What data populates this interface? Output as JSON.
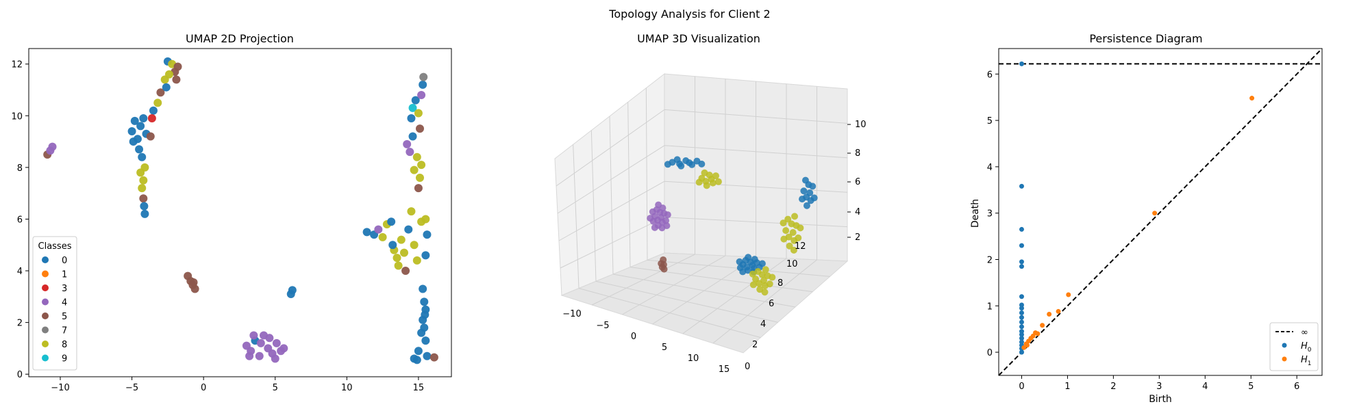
{
  "suptitle": "Topology Analysis for Client 2",
  "chart_data": [
    {
      "type": "scatter",
      "title": "UMAP 2D Projection",
      "xlim": [
        -12.2,
        17.3
      ],
      "ylim": [
        -0.1,
        12.6
      ],
      "xticks": [
        -10,
        -5,
        0,
        5,
        10,
        15
      ],
      "yticks": [
        0,
        2,
        4,
        6,
        8,
        10,
        12
      ],
      "grid": false,
      "legend": {
        "title": "Classes",
        "placement": "lower-left",
        "entries": [
          {
            "label": "0",
            "color": "#1f77b4"
          },
          {
            "label": "1",
            "color": "#ff7f0e"
          },
          {
            "label": "3",
            "color": "#d62728"
          },
          {
            "label": "4",
            "color": "#9467bd"
          },
          {
            "label": "5",
            "color": "#8c564b"
          },
          {
            "label": "7",
            "color": "#7f7f7f"
          },
          {
            "label": "8",
            "color": "#bcbd22"
          },
          {
            "label": "9",
            "color": "#17becf"
          }
        ]
      },
      "points": [
        {
          "x": -10.9,
          "y": 8.5,
          "c": "5"
        },
        {
          "x": -10.7,
          "y": 8.65,
          "c": "4"
        },
        {
          "x": -10.55,
          "y": 8.8,
          "c": "4"
        },
        {
          "x": -5.0,
          "y": 9.4,
          "c": "0"
        },
        {
          "x": -4.8,
          "y": 9.8,
          "c": "0"
        },
        {
          "x": -4.6,
          "y": 9.1,
          "c": "0"
        },
        {
          "x": -4.4,
          "y": 9.6,
          "c": "0"
        },
        {
          "x": -4.2,
          "y": 9.9,
          "c": "0"
        },
        {
          "x": -4.9,
          "y": 9.0,
          "c": "0"
        },
        {
          "x": -4.5,
          "y": 8.7,
          "c": "0"
        },
        {
          "x": -4.3,
          "y": 8.4,
          "c": "0"
        },
        {
          "x": -4.0,
          "y": 9.3,
          "c": "0"
        },
        {
          "x": -3.7,
          "y": 9.2,
          "c": "5"
        },
        {
          "x": -4.1,
          "y": 8.0,
          "c": "8"
        },
        {
          "x": -4.2,
          "y": 7.5,
          "c": "8"
        },
        {
          "x": -4.3,
          "y": 7.2,
          "c": "8"
        },
        {
          "x": -4.2,
          "y": 6.8,
          "c": "5"
        },
        {
          "x": -4.15,
          "y": 6.5,
          "c": "0"
        },
        {
          "x": -4.1,
          "y": 6.2,
          "c": "0"
        },
        {
          "x": -4.4,
          "y": 7.8,
          "c": "8"
        },
        {
          "x": -3.5,
          "y": 10.2,
          "c": "0"
        },
        {
          "x": -3.2,
          "y": 10.5,
          "c": "8"
        },
        {
          "x": -3.6,
          "y": 9.9,
          "c": "3"
        },
        {
          "x": -3.0,
          "y": 10.9,
          "c": "5"
        },
        {
          "x": -2.7,
          "y": 11.4,
          "c": "8"
        },
        {
          "x": -2.5,
          "y": 12.1,
          "c": "0"
        },
        {
          "x": -2.2,
          "y": 12.0,
          "c": "8"
        },
        {
          "x": -2.0,
          "y": 11.7,
          "c": "5"
        },
        {
          "x": -1.8,
          "y": 11.9,
          "c": "5"
        },
        {
          "x": -1.9,
          "y": 11.4,
          "c": "5"
        },
        {
          "x": -2.4,
          "y": 11.6,
          "c": "8"
        },
        {
          "x": -2.6,
          "y": 11.1,
          "c": "0"
        },
        {
          "x": -1.1,
          "y": 3.8,
          "c": "5"
        },
        {
          "x": -0.9,
          "y": 3.6,
          "c": "5"
        },
        {
          "x": -0.75,
          "y": 3.45,
          "c": "5"
        },
        {
          "x": -0.6,
          "y": 3.3,
          "c": "5"
        },
        {
          "x": -0.7,
          "y": 3.55,
          "c": "5"
        },
        {
          "x": 6.1,
          "y": 3.1,
          "c": "0"
        },
        {
          "x": 6.2,
          "y": 3.25,
          "c": "0"
        },
        {
          "x": 3.0,
          "y": 1.1,
          "c": "4"
        },
        {
          "x": 3.3,
          "y": 0.9,
          "c": "4"
        },
        {
          "x": 3.6,
          "y": 1.3,
          "c": "0"
        },
        {
          "x": 3.9,
          "y": 0.7,
          "c": "4"
        },
        {
          "x": 4.2,
          "y": 1.5,
          "c": "4"
        },
        {
          "x": 4.5,
          "y": 1.0,
          "c": "4"
        },
        {
          "x": 4.8,
          "y": 0.8,
          "c": "4"
        },
        {
          "x": 5.1,
          "y": 1.2,
          "c": "4"
        },
        {
          "x": 5.4,
          "y": 0.9,
          "c": "4"
        },
        {
          "x": 3.5,
          "y": 1.5,
          "c": "4"
        },
        {
          "x": 4.0,
          "y": 1.2,
          "c": "4"
        },
        {
          "x": 4.6,
          "y": 1.4,
          "c": "4"
        },
        {
          "x": 5.0,
          "y": 0.6,
          "c": "4"
        },
        {
          "x": 3.2,
          "y": 0.7,
          "c": "4"
        },
        {
          "x": 5.6,
          "y": 1.0,
          "c": "4"
        },
        {
          "x": 11.4,
          "y": 5.5,
          "c": "0"
        },
        {
          "x": 11.9,
          "y": 5.4,
          "c": "0"
        },
        {
          "x": 12.2,
          "y": 5.6,
          "c": "4"
        },
        {
          "x": 12.5,
          "y": 5.3,
          "c": "8"
        },
        {
          "x": 12.8,
          "y": 5.8,
          "c": "8"
        },
        {
          "x": 13.1,
          "y": 5.9,
          "c": "0"
        },
        {
          "x": 13.3,
          "y": 4.8,
          "c": "8"
        },
        {
          "x": 13.5,
          "y": 4.5,
          "c": "8"
        },
        {
          "x": 13.6,
          "y": 4.2,
          "c": "8"
        },
        {
          "x": 13.8,
          "y": 5.2,
          "c": "8"
        },
        {
          "x": 14.0,
          "y": 4.7,
          "c": "8"
        },
        {
          "x": 14.1,
          "y": 4.0,
          "c": "5"
        },
        {
          "x": 14.3,
          "y": 5.6,
          "c": "0"
        },
        {
          "x": 14.5,
          "y": 6.3,
          "c": "8"
        },
        {
          "x": 14.7,
          "y": 5.0,
          "c": "8"
        },
        {
          "x": 14.9,
          "y": 4.4,
          "c": "8"
        },
        {
          "x": 15.2,
          "y": 5.9,
          "c": "8"
        },
        {
          "x": 15.5,
          "y": 6.0,
          "c": "8"
        },
        {
          "x": 15.6,
          "y": 5.4,
          "c": "0"
        },
        {
          "x": 15.5,
          "y": 4.6,
          "c": "0"
        },
        {
          "x": 13.2,
          "y": 5.0,
          "c": "0"
        },
        {
          "x": 14.2,
          "y": 8.9,
          "c": "4"
        },
        {
          "x": 14.4,
          "y": 8.6,
          "c": "4"
        },
        {
          "x": 14.6,
          "y": 9.2,
          "c": "0"
        },
        {
          "x": 14.7,
          "y": 7.9,
          "c": "8"
        },
        {
          "x": 14.9,
          "y": 8.4,
          "c": "8"
        },
        {
          "x": 15.1,
          "y": 7.6,
          "c": "8"
        },
        {
          "x": 15.0,
          "y": 7.2,
          "c": "5"
        },
        {
          "x": 14.5,
          "y": 9.9,
          "c": "0"
        },
        {
          "x": 14.6,
          "y": 10.3,
          "c": "9"
        },
        {
          "x": 14.8,
          "y": 10.6,
          "c": "0"
        },
        {
          "x": 15.0,
          "y": 10.1,
          "c": "8"
        },
        {
          "x": 15.1,
          "y": 9.5,
          "c": "5"
        },
        {
          "x": 15.2,
          "y": 10.8,
          "c": "4"
        },
        {
          "x": 15.3,
          "y": 11.2,
          "c": "0"
        },
        {
          "x": 15.35,
          "y": 11.5,
          "c": "7"
        },
        {
          "x": 15.2,
          "y": 8.1,
          "c": "8"
        },
        {
          "x": 15.3,
          "y": 3.3,
          "c": "0"
        },
        {
          "x": 15.4,
          "y": 2.8,
          "c": "0"
        },
        {
          "x": 15.45,
          "y": 2.3,
          "c": "0"
        },
        {
          "x": 15.4,
          "y": 1.8,
          "c": "0"
        },
        {
          "x": 15.5,
          "y": 1.3,
          "c": "0"
        },
        {
          "x": 15.2,
          "y": 1.6,
          "c": "0"
        },
        {
          "x": 15.3,
          "y": 2.1,
          "c": "0"
        },
        {
          "x": 14.7,
          "y": 0.6,
          "c": "0"
        },
        {
          "x": 15.0,
          "y": 0.9,
          "c": "0"
        },
        {
          "x": 15.6,
          "y": 0.7,
          "c": "0"
        },
        {
          "x": 16.1,
          "y": 0.65,
          "c": "5"
        },
        {
          "x": 14.9,
          "y": 0.55,
          "c": "0"
        },
        {
          "x": 15.5,
          "y": 2.5,
          "c": "0"
        }
      ]
    },
    {
      "type": "scatter",
      "title": "UMAP 3D Visualization",
      "xticks": [
        -10,
        -5,
        0,
        5,
        10,
        15
      ],
      "yticks": [
        0,
        2,
        4,
        6,
        8,
        10,
        12
      ],
      "zticks": [
        2,
        4,
        6,
        8,
        10
      ],
      "grid": true
    },
    {
      "type": "scatter",
      "title": "Persistence Diagram",
      "xlabel": "Birth",
      "ylabel": "Death",
      "xlim": [
        -0.5,
        6.55
      ],
      "ylim": [
        -0.5,
        6.55
      ],
      "xticks": [
        0,
        1,
        2,
        3,
        4,
        5,
        6
      ],
      "yticks": [
        0,
        1,
        2,
        3,
        4,
        5,
        6
      ],
      "infinity_level": 6.22,
      "grid": false,
      "legend": {
        "placement": "lower-right",
        "entries": [
          {
            "label": "∞",
            "kind": "dashed-line",
            "color": "#000000"
          },
          {
            "label": "H",
            "sub": "0",
            "kind": "point",
            "color": "#1f77b4"
          },
          {
            "label": "H",
            "sub": "1",
            "kind": "point",
            "color": "#ff7f0e"
          }
        ]
      },
      "series": [
        {
          "color": "#1f77b4",
          "points": [
            [
              0,
              6.22
            ],
            [
              0,
              3.58
            ],
            [
              0,
              2.65
            ],
            [
              0,
              2.3
            ],
            [
              0,
              1.95
            ],
            [
              0,
              1.85
            ],
            [
              0,
              1.2
            ],
            [
              0,
              1.02
            ],
            [
              0,
              0.95
            ],
            [
              0,
              0.85
            ],
            [
              0,
              0.75
            ],
            [
              0,
              0.65
            ],
            [
              0,
              0.55
            ],
            [
              0,
              0.45
            ],
            [
              0,
              0.38
            ],
            [
              0,
              0.3
            ],
            [
              0,
              0.22
            ],
            [
              0,
              0.15
            ],
            [
              0,
              0.08
            ],
            [
              0,
              0.0
            ]
          ]
        },
        {
          "color": "#ff7f0e",
          "points": [
            [
              5.02,
              5.48
            ],
            [
              2.9,
              3.0
            ],
            [
              1.02,
              1.24
            ],
            [
              0.6,
              0.82
            ],
            [
              0.8,
              0.88
            ],
            [
              0.45,
              0.58
            ],
            [
              0.3,
              0.42
            ],
            [
              0.25,
              0.35
            ],
            [
              0.2,
              0.3
            ],
            [
              0.15,
              0.24
            ],
            [
              0.1,
              0.18
            ],
            [
              0.05,
              0.1
            ],
            [
              0.35,
              0.4
            ],
            [
              0.12,
              0.15
            ]
          ]
        }
      ]
    }
  ]
}
